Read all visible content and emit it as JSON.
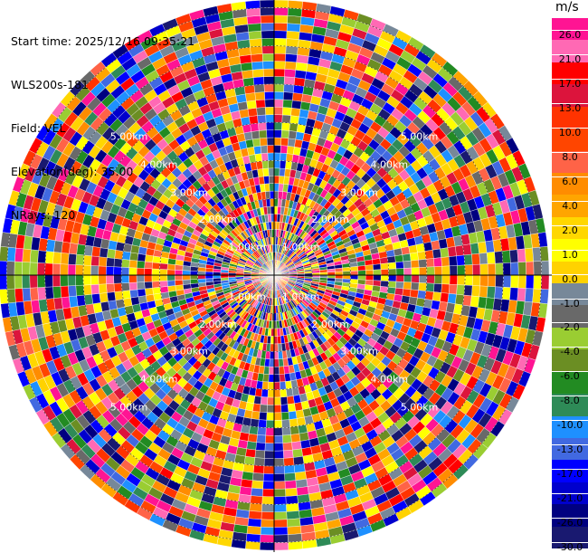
{
  "header": {
    "start_time": "Start time: 2025/12/16 09:35:21",
    "instrument": "WLS200s-181",
    "field": "Field: VEL",
    "elevation": "Elevation(deg): 35.00",
    "nrays": "NRays: 120"
  },
  "chart_data": {
    "type": "heatmap",
    "projection": "polar-ppi",
    "field": "VEL",
    "units": "m/s",
    "n_rays": 120,
    "n_gates": 36,
    "range_ring_labels": [
      "1.00km",
      "2.00km",
      "3.00km",
      "4.00km",
      "5.00km"
    ],
    "colorbar": {
      "units": "m/s",
      "ticks": [
        "26.0",
        "21.0",
        "17.0",
        "13.0",
        "10.0",
        "8.0",
        "6.0",
        "4.0",
        "2.0",
        "1.0",
        "0.0",
        "-1.0",
        "-2.0",
        "-4.0",
        "-6.0",
        "-8.0",
        "-10.0",
        "-13.0",
        "-17.0",
        "-21.0",
        "-26.0",
        "-30.0"
      ],
      "colors": [
        "#ff1493",
        "#ff69b4",
        "#ff0000",
        "#dc143c",
        "#ff3300",
        "#ff4500",
        "#ff6347",
        "#ff8c00",
        "#ffa500",
        "#ffd700",
        "#ffff00",
        "#ffd200",
        "#778899",
        "#696969",
        "#9acd32",
        "#6b8e23",
        "#228b22",
        "#2e8b57",
        "#1e90ff",
        "#4169e1",
        "#0000ff",
        "#0000cd",
        "#000080",
        "#191970"
      ]
    }
  }
}
